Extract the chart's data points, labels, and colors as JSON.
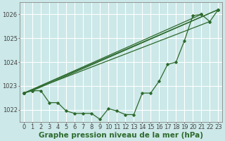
{
  "background_color": "#cce8e8",
  "grid_color": "#ffffff",
  "line_color": "#2d6a2d",
  "marker_color": "#2d6a2d",
  "xlabel": "Graphe pression niveau de la mer (hPa)",
  "xlabel_fontsize": 7.5,
  "tick_fontsize": 6,
  "ylim": [
    1021.5,
    1026.5
  ],
  "xlim": [
    -0.5,
    23.5
  ],
  "yticks": [
    1022,
    1023,
    1024,
    1025,
    1026
  ],
  "xticks": [
    0,
    1,
    2,
    3,
    4,
    5,
    6,
    7,
    8,
    9,
    10,
    11,
    12,
    13,
    14,
    15,
    16,
    17,
    18,
    19,
    20,
    21,
    22,
    23
  ],
  "y_observed": [
    1022.7,
    1022.8,
    1022.8,
    1022.3,
    1022.3,
    1021.95,
    1021.85,
    1021.85,
    1021.85,
    1021.6,
    1022.05,
    1021.95,
    1021.8,
    1021.8,
    1022.7,
    1022.7,
    1023.2,
    1023.9,
    1024.0,
    1024.9,
    1025.95,
    1026.0,
    1025.7,
    1026.2
  ],
  "straight_lines": [
    {
      "x": [
        0,
        1,
        20,
        21,
        22,
        23
      ],
      "y": [
        1022.7,
        1022.8,
        1025.95,
        1026.0,
        1025.7,
        1026.2
      ]
    },
    {
      "x": [
        0,
        1,
        20,
        21,
        22,
        23
      ],
      "y": [
        1022.7,
        1022.8,
        1025.95,
        1026.0,
        1025.7,
        1026.2
      ]
    },
    {
      "x": [
        0,
        1,
        20,
        21,
        22,
        23
      ],
      "y": [
        1022.7,
        1022.8,
        1025.95,
        1026.0,
        1025.7,
        1026.2
      ]
    }
  ],
  "fan_lines": [
    {
      "x0": 0,
      "y0": 1022.7,
      "x1": 23,
      "y1": 1026.2
    },
    {
      "x0": 0,
      "y0": 1022.7,
      "x1": 22,
      "y1": 1025.7
    },
    {
      "x0": 0,
      "y0": 1022.7,
      "x1": 21,
      "y1": 1026.0
    },
    {
      "x0": 1,
      "y0": 1022.8,
      "x1": 23,
      "y1": 1026.2
    }
  ]
}
